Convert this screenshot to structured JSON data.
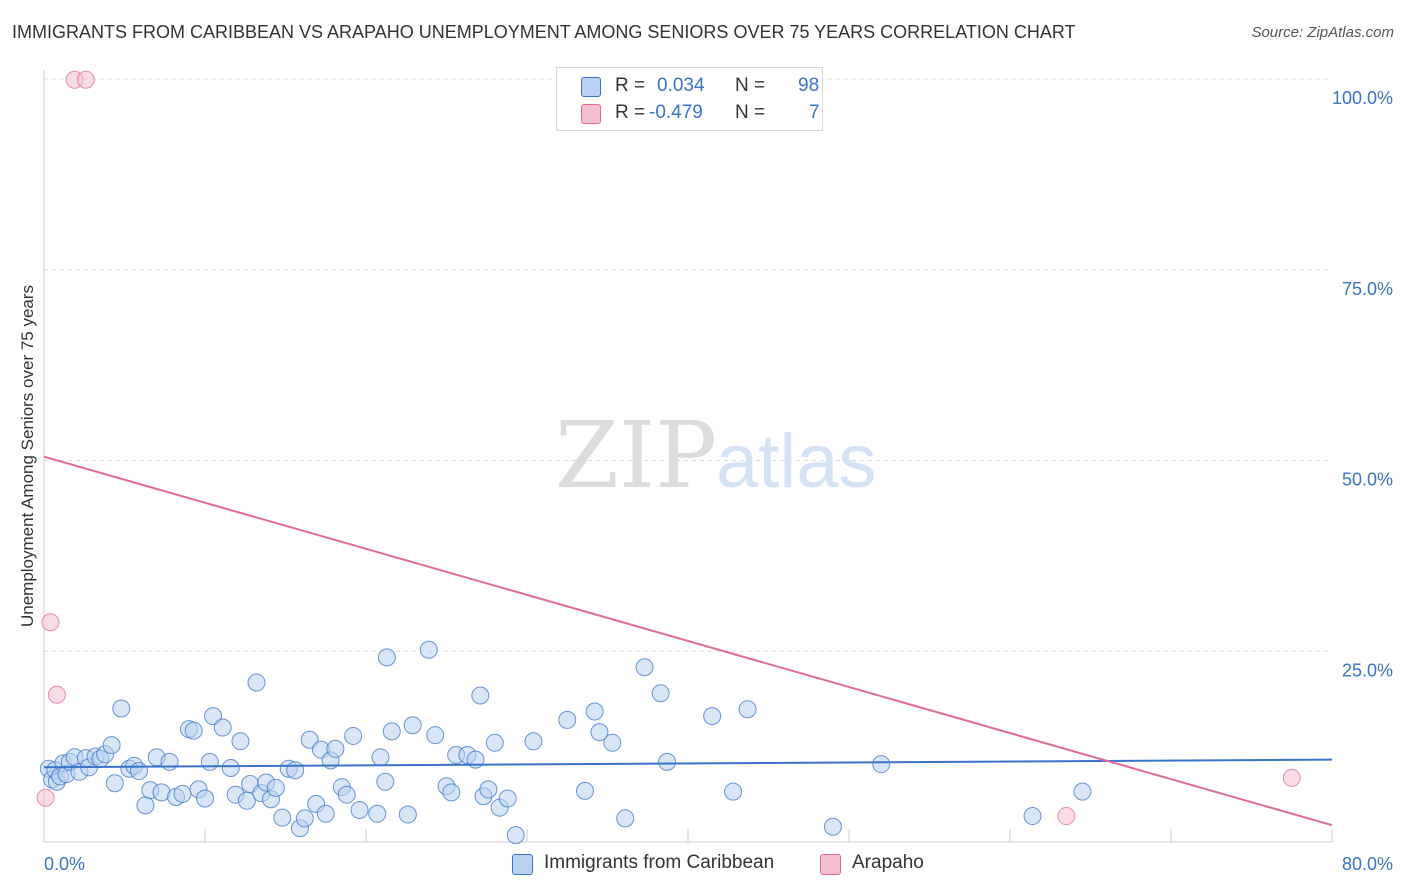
{
  "chart_data": {
    "type": "scatter",
    "title": "IMMIGRANTS FROM CARIBBEAN VS ARAPAHO UNEMPLOYMENT AMONG SENIORS OVER 75 YEARS CORRELATION CHART",
    "source": "Source: ZipAtlas.com",
    "ylabel": "Unemployment Among Seniors over 75 years",
    "xlabel": "",
    "xlim": [
      0,
      80
    ],
    "ylim": [
      0,
      100
    ],
    "x_tick_labels": [
      "0.0%",
      "80.0%"
    ],
    "y_tick_labels": [
      "100.0%",
      "75.0%",
      "50.0%",
      "25.0%"
    ],
    "y_tick_values": [
      100,
      75,
      50,
      25
    ],
    "watermark": {
      "zip": "ZIP",
      "atlas": "atlas"
    },
    "colors": {
      "blue": "#3a74c8",
      "blue_fill": "#b9d2f1",
      "pink": "#e06a99",
      "pink_fill": "#f6bfd0",
      "tick_label": "#3a74c8"
    },
    "legend": [
      {
        "name": "Immigrants from Caribbean",
        "r_label": "R =",
        "r_value": "0.034",
        "n_label": "N =",
        "n_value": "98"
      },
      {
        "name": "Arapaho",
        "r_label": "R =",
        "r_value": "-0.479",
        "n_label": "N =",
        "n_value": "7"
      }
    ],
    "series": [
      {
        "name": "Immigrants from Caribbean",
        "trend": [
          [
            0,
            9.8
          ],
          [
            80,
            10.8
          ]
        ],
        "points": [
          [
            0.3,
            9.6
          ],
          [
            0.5,
            8.2
          ],
          [
            0.7,
            9.4
          ],
          [
            0.8,
            7.9
          ],
          [
            1.0,
            8.6
          ],
          [
            1.2,
            10.3
          ],
          [
            1.4,
            8.9
          ],
          [
            1.6,
            10.5
          ],
          [
            1.9,
            11.1
          ],
          [
            2.2,
            9.2
          ],
          [
            2.6,
            11.0
          ],
          [
            2.8,
            9.8
          ],
          [
            3.2,
            11.2
          ],
          [
            3.5,
            10.9
          ],
          [
            3.8,
            11.5
          ],
          [
            4.2,
            12.7
          ],
          [
            4.4,
            7.7
          ],
          [
            4.8,
            17.5
          ],
          [
            5.3,
            9.6
          ],
          [
            5.6,
            10.0
          ],
          [
            5.9,
            9.3
          ],
          [
            6.3,
            4.8
          ],
          [
            6.6,
            6.8
          ],
          [
            7.0,
            11.1
          ],
          [
            7.3,
            6.5
          ],
          [
            7.8,
            10.5
          ],
          [
            8.2,
            5.9
          ],
          [
            8.6,
            6.3
          ],
          [
            9.0,
            14.8
          ],
          [
            9.3,
            14.6
          ],
          [
            9.6,
            6.9
          ],
          [
            10.0,
            5.7
          ],
          [
            10.3,
            10.5
          ],
          [
            10.5,
            16.5
          ],
          [
            11.1,
            15.0
          ],
          [
            11.6,
            9.7
          ],
          [
            11.9,
            6.2
          ],
          [
            12.2,
            13.2
          ],
          [
            12.6,
            5.4
          ],
          [
            12.8,
            7.6
          ],
          [
            13.2,
            20.9
          ],
          [
            13.5,
            6.4
          ],
          [
            13.8,
            7.8
          ],
          [
            14.1,
            5.6
          ],
          [
            14.4,
            7.1
          ],
          [
            14.8,
            3.2
          ],
          [
            15.2,
            9.6
          ],
          [
            15.6,
            9.4
          ],
          [
            15.9,
            1.8
          ],
          [
            16.2,
            3.1
          ],
          [
            16.5,
            13.4
          ],
          [
            16.9,
            5.0
          ],
          [
            17.2,
            12.1
          ],
          [
            17.5,
            3.7
          ],
          [
            17.8,
            10.7
          ],
          [
            18.1,
            12.2
          ],
          [
            18.5,
            7.2
          ],
          [
            18.8,
            6.2
          ],
          [
            19.2,
            13.9
          ],
          [
            19.6,
            4.2
          ],
          [
            20.7,
            3.7
          ],
          [
            20.9,
            11.1
          ],
          [
            21.2,
            7.9
          ],
          [
            21.3,
            24.2
          ],
          [
            21.6,
            14.5
          ],
          [
            22.6,
            3.6
          ],
          [
            22.9,
            15.3
          ],
          [
            23.9,
            25.2
          ],
          [
            24.3,
            14.0
          ],
          [
            25.0,
            7.3
          ],
          [
            25.3,
            6.5
          ],
          [
            25.6,
            11.4
          ],
          [
            26.3,
            11.4
          ],
          [
            26.8,
            10.8
          ],
          [
            27.1,
            19.2
          ],
          [
            27.3,
            6.0
          ],
          [
            27.6,
            6.9
          ],
          [
            28.0,
            13.0
          ],
          [
            28.3,
            4.5
          ],
          [
            28.8,
            5.7
          ],
          [
            29.3,
            0.9
          ],
          [
            30.4,
            13.2
          ],
          [
            32.5,
            16.0
          ],
          [
            33.6,
            6.7
          ],
          [
            34.2,
            17.1
          ],
          [
            34.5,
            14.4
          ],
          [
            35.3,
            13.0
          ],
          [
            36.1,
            3.1
          ],
          [
            37.3,
            22.9
          ],
          [
            38.3,
            19.5
          ],
          [
            38.7,
            10.5
          ],
          [
            41.5,
            16.5
          ],
          [
            42.8,
            6.6
          ],
          [
            43.7,
            17.4
          ],
          [
            49.0,
            2.0
          ],
          [
            52.0,
            10.2
          ],
          [
            61.4,
            3.4
          ],
          [
            64.5,
            6.6
          ]
        ]
      },
      {
        "name": "Arapaho",
        "trend": [
          [
            0,
            50.5
          ],
          [
            80,
            2.2
          ]
        ],
        "points": [
          [
            0.1,
            5.8
          ],
          [
            0.4,
            28.8
          ],
          [
            0.8,
            19.3
          ],
          [
            1.9,
            99.9
          ],
          [
            2.6,
            99.9
          ],
          [
            63.5,
            3.4
          ],
          [
            77.5,
            8.4
          ]
        ]
      }
    ]
  }
}
